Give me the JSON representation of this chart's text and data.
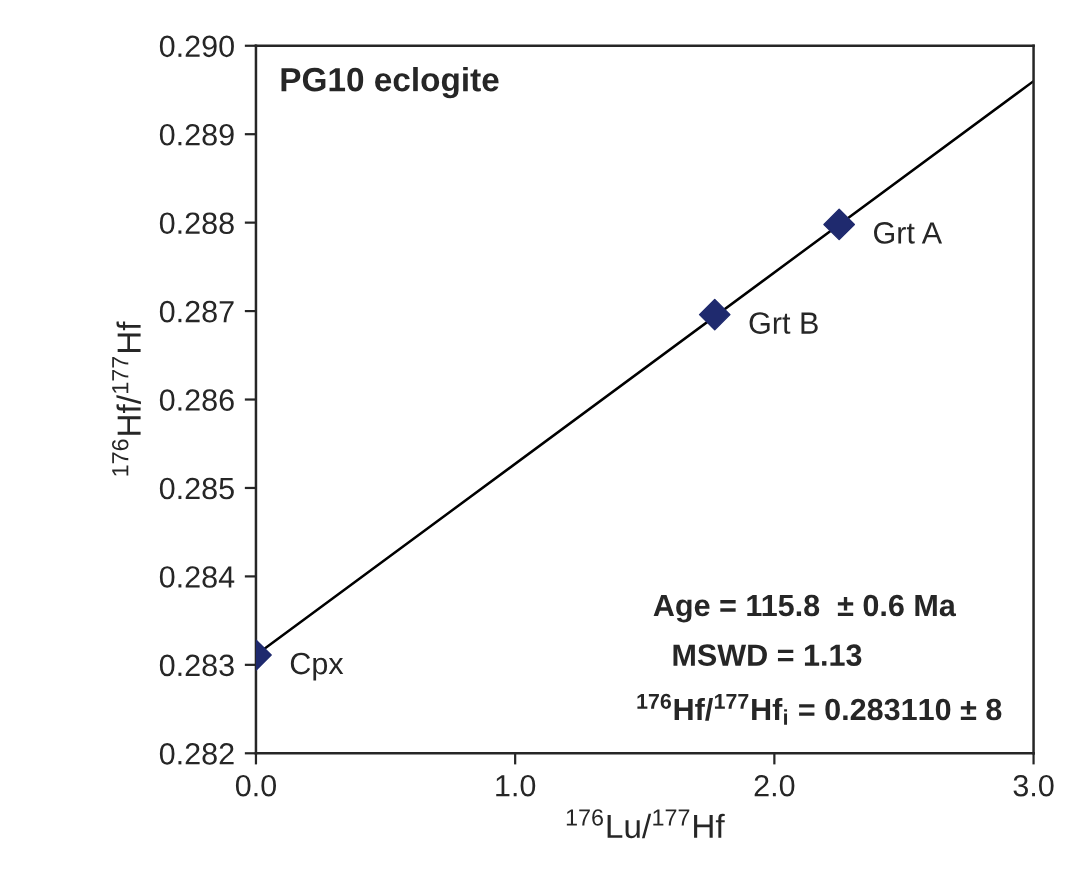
{
  "chart_data": {
    "type": "scatter",
    "title": "PG10 eclogite",
    "xlabel": "$^{176}$Lu/$^{177}$Hf",
    "ylabel": "$^{176}$Hf/$^{177}$Hf",
    "series": [
      {
        "type": "scatter",
        "color": "#1f2a6e",
        "x": [
          0.0,
          1.77,
          2.25
        ],
        "values": [
          0.28311,
          0.28696,
          0.28798
        ],
        "marker": "diamond"
      },
      {
        "type": "line",
        "color": "#000000",
        "x": [
          0.0,
          3.0
        ],
        "values": [
          0.28311,
          0.2896
        ],
        "marker": "none",
        "line_style": "solid"
      }
    ],
    "annotations": [
      {
        "text": "Cpx",
        "x": 0.0,
        "y": 0.28311
      },
      {
        "text": "Grt B",
        "x": 1.77,
        "y": 0.28696
      },
      {
        "text": "Grt A",
        "x": 2.25,
        "y": 0.28798
      },
      "Age = 115.8  ± 0.6 Ma",
      "MSWD = 1.13",
      "$^{176}$Hf/$^{177}$Hf$_{i}$ = 0.283110 ± 8"
    ],
    "xlim": [
      0.0,
      3.0
    ],
    "xticks": [
      {
        "value": 0,
        "label": "0.0"
      },
      {
        "value": 1,
        "label": "1.0"
      },
      {
        "value": 2,
        "label": "2.0"
      },
      {
        "value": 3,
        "label": "3.0"
      }
    ],
    "ylim": [
      0.282,
      0.29
    ],
    "yticks": [
      {
        "value": 0.282,
        "label": "0.282"
      },
      {
        "value": 0.283,
        "label": "0.283"
      },
      {
        "value": 0.284,
        "label": "0.284"
      },
      {
        "value": 0.285,
        "label": "0.285"
      },
      {
        "value": 0.286,
        "label": "0.286"
      },
      {
        "value": 0.287,
        "label": "0.287"
      },
      {
        "value": 0.288,
        "label": "0.288"
      },
      {
        "value": 0.289,
        "label": "0.289"
      },
      {
        "value": 0.29,
        "label": "0.290"
      }
    ],
    "grid": false,
    "legend": false
  }
}
